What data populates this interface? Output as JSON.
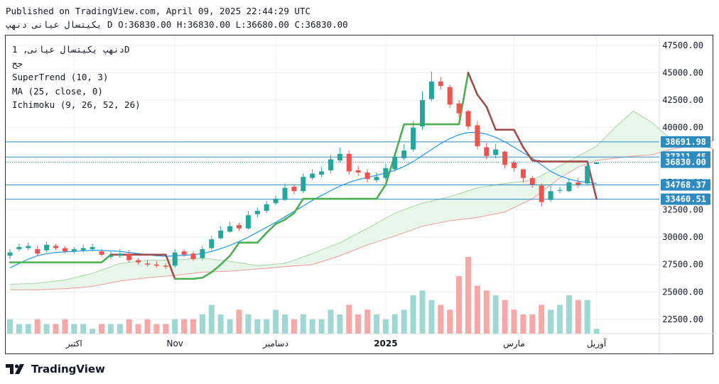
{
  "header": {
    "published": "Published on TradingView.com, April 09, 2025 22:44:29 UTC",
    "symbol_line": "یکیتسال عیانی   دنهپ D",
    "open": "O:36830.00",
    "high": "H:36830.00",
    "low": "L:36680.00",
    "close": "C:36830.00"
  },
  "legend": {
    "symbol": "دنهپ  یکیتسال عیانی, 1D",
    "exchange": "جح",
    "supertrend": "SuperTrend (10, 3)",
    "ma": "MA (25, close, 0)",
    "ichimoku": "Ichimoku (9, 26, 52, 26)"
  },
  "brand": {
    "name": "TradingView",
    "logo_icon": "tradingview-logo-icon"
  },
  "colors": {
    "up": "#26a69a",
    "down": "#ef5350",
    "supertrend_up": "#4caf50",
    "supertrend_down": "#a34b4b",
    "ma": "#2196f3",
    "cloud_green": "#e8f5e9",
    "cloud_red": "#fce4e4",
    "hline": "#2e8bc0"
  },
  "chart_data": {
    "type": "candlestick",
    "y_ticks": [
      "47500.00",
      "45000.00",
      "42500.00",
      "40000.00",
      "37500.00",
      "35000.00",
      "32500.00",
      "30000.00",
      "27500.00",
      "25000.00",
      "22500.00"
    ],
    "ylim": [
      21200,
      48400
    ],
    "x_ticks": [
      {
        "label": "اکتبر",
        "index": 7
      },
      {
        "label": "Nov",
        "index": 18
      },
      {
        "label": "دسامبر",
        "index": 29
      },
      {
        "label": "2025",
        "index": 41,
        "bold": true
      },
      {
        "label": "مارس",
        "index": 55
      },
      {
        "label": "آوریل",
        "index": 64
      }
    ],
    "price_lines": [
      {
        "value": 38691.98,
        "label": "38691.98"
      },
      {
        "value": 37311.45,
        "label": "37311.45"
      },
      {
        "value": 34768.37,
        "label": "34768.37"
      },
      {
        "value": 33460.51,
        "label": "33460.51"
      }
    ],
    "last_price": {
      "value": 36830,
      "label": "36830.00"
    },
    "close": [
      28600,
      29100,
      29200,
      28500,
      29300,
      29000,
      28700,
      28900,
      29000,
      29100,
      28400,
      28300,
      28500,
      27900,
      27700,
      27500,
      27400,
      27300,
      28600,
      28400,
      28000,
      28900,
      29800,
      30600,
      31000,
      30800,
      32000,
      32400,
      33000,
      33500,
      34500,
      34200,
      35500,
      35800,
      36000,
      37100,
      37600,
      36000,
      35900,
      35300,
      35500,
      36300,
      37300,
      37900,
      40000,
      42500,
      44200,
      43800,
      42100,
      41300,
      40100,
      38300,
      37400,
      38000,
      36600,
      36300,
      35400,
      34800,
      33200,
      34200,
      34300,
      35000,
      34800,
      36500,
      36830
    ],
    "open": [
      28300,
      28900,
      29000,
      28900,
      28800,
      29200,
      29000,
      28700,
      28800,
      28900,
      28700,
      28200,
      28300,
      28500,
      27900,
      27600,
      27500,
      27400,
      27400,
      28700,
      28500,
      28100,
      29000,
      29900,
      30500,
      31100,
      30800,
      32100,
      32400,
      33100,
      33400,
      34600,
      34200,
      35400,
      35700,
      36100,
      37000,
      37600,
      36100,
      35900,
      35200,
      35400,
      36200,
      37200,
      38000,
      40100,
      42600,
      44200,
      43700,
      42200,
      41500,
      40200,
      38200,
      37500,
      37800,
      36800,
      36200,
      35400,
      34700,
      33400,
      34300,
      34200,
      35000,
      34900,
      36680
    ],
    "high": [
      28900,
      29400,
      29500,
      29200,
      29600,
      29400,
      29200,
      29100,
      29300,
      29400,
      28900,
      28700,
      28900,
      28800,
      28100,
      27900,
      27800,
      27600,
      28900,
      28900,
      28700,
      29200,
      30100,
      31000,
      31400,
      31300,
      32400,
      32700,
      33300,
      33800,
      34900,
      34800,
      35800,
      36200,
      36400,
      37500,
      38200,
      37900,
      36500,
      36200,
      35900,
      36700,
      37700,
      38500,
      40600,
      43300,
      45100,
      44600,
      43900,
      42500,
      41600,
      40600,
      38600,
      38500,
      37900,
      37000,
      36000,
      35600,
      34900,
      34700,
      34600,
      35300,
      35400,
      36800,
      36830
    ],
    "low": [
      28000,
      28700,
      28800,
      28300,
      28600,
      28800,
      28500,
      28500,
      28600,
      28700,
      28200,
      28000,
      28100,
      27700,
      27500,
      27300,
      27200,
      27100,
      27200,
      28200,
      27800,
      27900,
      28800,
      29800,
      30400,
      30600,
      30700,
      31800,
      32200,
      32900,
      33300,
      33900,
      34000,
      35200,
      35500,
      35800,
      36800,
      35700,
      35600,
      35000,
      35000,
      35200,
      36000,
      37000,
      37800,
      39800,
      42400,
      43500,
      41800,
      40900,
      39800,
      38000,
      37100,
      37200,
      36300,
      36000,
      35000,
      34500,
      32800,
      33200,
      34000,
      34100,
      34500,
      34800,
      36680
    ],
    "volume": [
      3,
      2,
      2,
      3,
      2,
      2,
      3,
      2,
      2,
      1,
      2,
      2,
      2,
      3,
      2,
      3,
      2,
      2,
      3,
      3,
      3,
      4,
      6,
      4,
      3,
      5,
      4,
      3,
      3,
      5,
      4,
      3,
      4,
      3,
      3,
      5,
      4,
      6,
      4,
      5,
      4,
      3,
      4,
      5,
      8,
      9,
      7,
      6,
      5,
      12,
      16,
      10,
      9,
      8,
      7,
      5,
      4,
      4,
      6,
      5,
      6,
      8,
      7,
      7,
      1
    ],
    "ma": [
      27200,
      27600,
      28000,
      28300,
      28500,
      28600,
      28650,
      28700,
      28750,
      28800,
      28800,
      28750,
      28700,
      28600,
      28500,
      28400,
      28300,
      28250,
      28300,
      28350,
      28400,
      28500,
      28700,
      28950,
      29250,
      29600,
      30000,
      30450,
      30900,
      31350,
      31850,
      32350,
      32850,
      33350,
      33800,
      34250,
      34650,
      35000,
      35250,
      35450,
      35650,
      35850,
      36100,
      36450,
      36900,
      37450,
      38000,
      38550,
      39000,
      39350,
      39550,
      39550,
      39400,
      39100,
      38700,
      38200,
      37700,
      37200,
      36600,
      36000,
      35600,
      35300,
      35100,
      35000,
      34900
    ],
    "supertrend": [
      {
        "v": 27700,
        "d": "up"
      },
      {
        "v": 27700,
        "d": "up"
      },
      {
        "v": 27700,
        "d": "up"
      },
      {
        "v": 27700,
        "d": "up"
      },
      {
        "v": 27700,
        "d": "up"
      },
      {
        "v": 27700,
        "d": "up"
      },
      {
        "v": 27700,
        "d": "up"
      },
      {
        "v": 27700,
        "d": "up"
      },
      {
        "v": 27700,
        "d": "up"
      },
      {
        "v": 27700,
        "d": "up"
      },
      {
        "v": 27700,
        "d": "up"
      },
      {
        "v": 28400,
        "d": "down"
      },
      {
        "v": 28400,
        "d": "down"
      },
      {
        "v": 28400,
        "d": "down"
      },
      {
        "v": 28400,
        "d": "down"
      },
      {
        "v": 28400,
        "d": "down"
      },
      {
        "v": 28400,
        "d": "down"
      },
      {
        "v": 28400,
        "d": "down"
      },
      {
        "v": 26200,
        "d": "up"
      },
      {
        "v": 26200,
        "d": "up"
      },
      {
        "v": 26200,
        "d": "up"
      },
      {
        "v": 26300,
        "d": "up"
      },
      {
        "v": 26800,
        "d": "up"
      },
      {
        "v": 27500,
        "d": "up"
      },
      {
        "v": 28300,
        "d": "up"
      },
      {
        "v": 29500,
        "d": "up"
      },
      {
        "v": 29500,
        "d": "up"
      },
      {
        "v": 29500,
        "d": "up"
      },
      {
        "v": 30400,
        "d": "up"
      },
      {
        "v": 31200,
        "d": "up"
      },
      {
        "v": 31600,
        "d": "up"
      },
      {
        "v": 32200,
        "d": "up"
      },
      {
        "v": 33500,
        "d": "up"
      },
      {
        "v": 33500,
        "d": "up"
      },
      {
        "v": 33500,
        "d": "up"
      },
      {
        "v": 33500,
        "d": "up"
      },
      {
        "v": 33500,
        "d": "up"
      },
      {
        "v": 33500,
        "d": "up"
      },
      {
        "v": 33500,
        "d": "up"
      },
      {
        "v": 33500,
        "d": "up"
      },
      {
        "v": 33500,
        "d": "up"
      },
      {
        "v": 34800,
        "d": "up"
      },
      {
        "v": 37500,
        "d": "up"
      },
      {
        "v": 40300,
        "d": "up"
      },
      {
        "v": 40300,
        "d": "up"
      },
      {
        "v": 40300,
        "d": "up"
      },
      {
        "v": 40300,
        "d": "up"
      },
      {
        "v": 40300,
        "d": "up"
      },
      {
        "v": 40300,
        "d": "up"
      },
      {
        "v": 40300,
        "d": "up"
      },
      {
        "v": 45000,
        "d": "down"
      },
      {
        "v": 43000,
        "d": "down"
      },
      {
        "v": 41900,
        "d": "down"
      },
      {
        "v": 39800,
        "d": "down"
      },
      {
        "v": 39800,
        "d": "down"
      },
      {
        "v": 39800,
        "d": "down"
      },
      {
        "v": 38200,
        "d": "down"
      },
      {
        "v": 37000,
        "d": "down"
      },
      {
        "v": 36900,
        "d": "down"
      },
      {
        "v": 36900,
        "d": "down"
      },
      {
        "v": 36900,
        "d": "down"
      },
      {
        "v": 36900,
        "d": "down"
      },
      {
        "v": 36900,
        "d": "down"
      },
      {
        "v": 36900,
        "d": "down"
      },
      {
        "v": 33500,
        "d": "up"
      }
    ],
    "cloud": [
      {
        "x": 0,
        "a": 25700,
        "b": 25200
      },
      {
        "x": 3,
        "a": 25800,
        "b": 25200
      },
      {
        "x": 6,
        "a": 26100,
        "b": 25300
      },
      {
        "x": 9,
        "a": 26700,
        "b": 25500
      },
      {
        "x": 12,
        "a": 27600,
        "b": 26000
      },
      {
        "x": 15,
        "a": 27900,
        "b": 26300
      },
      {
        "x": 18,
        "a": 27900,
        "b": 26500
      },
      {
        "x": 21,
        "a": 28100,
        "b": 26800
      },
      {
        "x": 24,
        "a": 27800,
        "b": 26900
      },
      {
        "x": 27,
        "a": 27400,
        "b": 27100
      },
      {
        "x": 30,
        "a": 27600,
        "b": 27300
      },
      {
        "x": 33,
        "a": 28500,
        "b": 27500
      },
      {
        "x": 36,
        "a": 29500,
        "b": 28300
      },
      {
        "x": 39,
        "a": 30800,
        "b": 29300
      },
      {
        "x": 42,
        "a": 32200,
        "b": 30100
      },
      {
        "x": 45,
        "a": 33100,
        "b": 31000
      },
      {
        "x": 48,
        "a": 33700,
        "b": 31500
      },
      {
        "x": 51,
        "a": 34500,
        "b": 31800
      },
      {
        "x": 54,
        "a": 34900,
        "b": 32300
      },
      {
        "x": 57,
        "a": 35200,
        "b": 33500
      },
      {
        "x": 60,
        "a": 36500,
        "b": 35400
      },
      {
        "x": 62,
        "a": 37400,
        "b": 36400
      },
      {
        "x": 64,
        "a": 38300,
        "b": 37000
      },
      {
        "x": 66,
        "a": 40000,
        "b": 37200
      },
      {
        "x": 68,
        "a": 41500,
        "b": 37400
      },
      {
        "x": 70,
        "a": 40500,
        "b": 37500
      },
      {
        "x": 72,
        "a": 39000,
        "b": 38000
      },
      {
        "x": 74,
        "a": 38700,
        "b": 38300
      },
      {
        "x": 76,
        "a": 38200,
        "b": 38800
      },
      {
        "x": 78,
        "a": 37800,
        "b": 38700
      },
      {
        "x": 80,
        "a": 37300,
        "b": 37900
      }
    ]
  }
}
